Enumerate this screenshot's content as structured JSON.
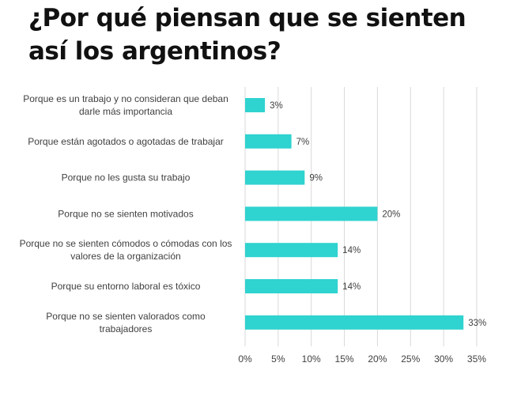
{
  "chart_data": {
    "type": "bar",
    "orientation": "horizontal",
    "title": "¿Por qué piensan que se sienten así los argentinos?",
    "categories": [
      [
        "Porque es un trabajo y no consideran que deban",
        "darle más importancia"
      ],
      [
        "Porque están agotados o agotadas de trabajar"
      ],
      [
        "Porque no les gusta su trabajo"
      ],
      [
        "Porque no se sienten motivados"
      ],
      [
        "Porque no se sienten cómodos o cómodas con los",
        "valores de la organización"
      ],
      [
        "Porque su entorno laboral es tóxico"
      ],
      [
        "Porque no se sienten valorados como",
        "trabajadores"
      ]
    ],
    "values": [
      3,
      7,
      9,
      20,
      14,
      14,
      33
    ],
    "value_labels": [
      "3%",
      "7%",
      "9%",
      "20%",
      "14%",
      "14%",
      "33%"
    ],
    "xlim": [
      0,
      35
    ],
    "xticks": [
      0,
      5,
      10,
      15,
      20,
      25,
      30,
      35
    ],
    "xtick_labels": [
      "0%",
      "5%",
      "10%",
      "15%",
      "20%",
      "25%",
      "30%",
      "35%"
    ],
    "xlabel": "",
    "ylabel": "",
    "grid": true,
    "colors": {
      "bar": "#2fd3cf",
      "text": "#404040",
      "grid": "#d9d9d9",
      "title": "#111111"
    }
  }
}
